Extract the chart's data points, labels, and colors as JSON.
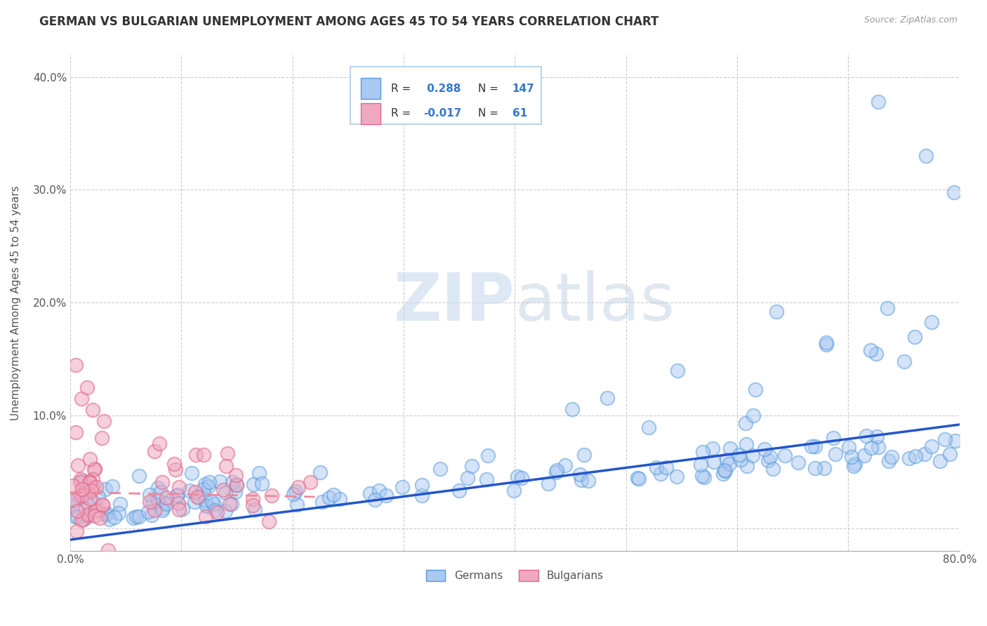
{
  "title": "GERMAN VS BULGARIAN UNEMPLOYMENT AMONG AGES 45 TO 54 YEARS CORRELATION CHART",
  "source": "Source: ZipAtlas.com",
  "ylabel": "Unemployment Among Ages 45 to 54 years",
  "xlim": [
    0.0,
    0.8
  ],
  "ylim": [
    -0.02,
    0.42
  ],
  "yticks": [
    0.0,
    0.1,
    0.2,
    0.3,
    0.4
  ],
  "xticks": [
    0.0,
    0.1,
    0.2,
    0.3,
    0.4,
    0.5,
    0.6,
    0.7,
    0.8
  ],
  "german_R": 0.288,
  "german_N": 147,
  "bulgarian_R": -0.017,
  "bulgarian_N": 61,
  "german_color": "#aac8f0",
  "bulgarian_color": "#f0a8c0",
  "german_edge_color": "#5599dd",
  "bulgarian_edge_color": "#dd6688",
  "german_line_color": "#2255cc",
  "bulgarian_line_color": "#ee8899",
  "title_fontsize": 12,
  "axis_fontsize": 11,
  "background_color": "#ffffff",
  "grid_color": "#cccccc"
}
